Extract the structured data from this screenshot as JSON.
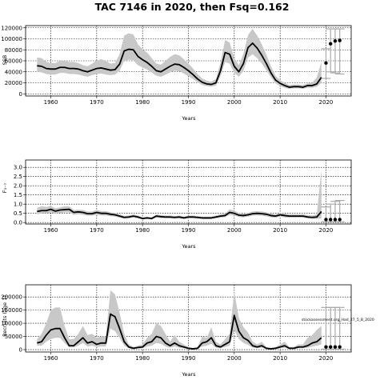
{
  "title": "TAC 7146 in 2020, then Fsq=0.162",
  "colors": {
    "band": "#c8c8c8",
    "line": "#000000",
    "bar": "#aaaaaa",
    "grid": "#000000"
  },
  "chart_data": [
    {
      "type": "line",
      "panel": "ssb",
      "xlabel": "Years",
      "ylabel": "SSB",
      "xlim": [
        1954.5,
        2025.5
      ],
      "ylim": [
        -4000,
        124000
      ],
      "xticks": [
        1960,
        1970,
        1980,
        1990,
        2000,
        2010,
        2020
      ],
      "xtick_labels": [
        "1960",
        "1970",
        "1980",
        "1990",
        "2000",
        "2010",
        "2020"
      ],
      "yticks": [
        0,
        20000,
        40000,
        60000,
        80000,
        100000,
        120000
      ],
      "ytick_labels": [
        "0",
        "20000",
        "40000",
        "60000",
        "80000",
        "100000",
        "120000"
      ],
      "grid": true,
      "years": [
        1957,
        1958,
        1959,
        1960,
        1961,
        1962,
        1963,
        1964,
        1965,
        1966,
        1967,
        1968,
        1969,
        1970,
        1971,
        1972,
        1973,
        1974,
        1975,
        1976,
        1977,
        1978,
        1979,
        1980,
        1981,
        1982,
        1983,
        1984,
        1985,
        1986,
        1987,
        1988,
        1989,
        1990,
        1991,
        1992,
        1993,
        1994,
        1995,
        1996,
        1997,
        1998,
        1999,
        2000,
        2001,
        2002,
        2003,
        2004,
        2005,
        2006,
        2007,
        2008,
        2009,
        2010,
        2011,
        2012,
        2013,
        2014,
        2015,
        2016,
        2017,
        2018,
        2019
      ],
      "series": [
        {
          "role": "median",
          "values": [
            51000,
            50000,
            46000,
            45000,
            45000,
            48000,
            48000,
            46000,
            46000,
            45000,
            42000,
            40000,
            43000,
            46000,
            47000,
            45000,
            43000,
            44000,
            54000,
            78000,
            81000,
            80000,
            68000,
            62000,
            57000,
            50000,
            42000,
            40000,
            45000,
            50000,
            54000,
            53000,
            48000,
            42000,
            35000,
            27000,
            21000,
            18000,
            17000,
            20000,
            42000,
            75000,
            72000,
            50000,
            40000,
            55000,
            84000,
            92000,
            83000,
            70000,
            55000,
            38000,
            25000,
            19000,
            15000,
            12000,
            13000,
            13000,
            12000,
            15000,
            15000,
            18000,
            30000
          ]
        },
        {
          "role": "upper",
          "values": [
            66000,
            65000,
            58000,
            56000,
            56000,
            60000,
            60000,
            58000,
            58000,
            56000,
            52000,
            50000,
            55000,
            61000,
            63000,
            60000,
            55000,
            56000,
            72000,
            106000,
            110000,
            108000,
            90000,
            81000,
            75000,
            65000,
            55000,
            53000,
            60000,
            67000,
            72000,
            70000,
            63000,
            55000,
            46000,
            36000,
            28000,
            24000,
            22000,
            27000,
            57000,
            98000,
            93000,
            65000,
            52000,
            73000,
            107000,
            118000,
            106000,
            90000,
            71000,
            50000,
            33000,
            25000,
            20000,
            16000,
            17000,
            17000,
            16000,
            19000,
            20000,
            30000,
            58000
          ]
        },
        {
          "role": "lower",
          "values": [
            40000,
            39000,
            36000,
            35000,
            35000,
            38000,
            38000,
            36000,
            36000,
            35000,
            33000,
            31000,
            34000,
            36000,
            37000,
            35000,
            34000,
            35000,
            42000,
            60000,
            62000,
            61000,
            52000,
            48000,
            44000,
            39000,
            33000,
            31000,
            35000,
            39000,
            42000,
            41000,
            37000,
            32000,
            27000,
            21000,
            16000,
            14000,
            13000,
            15000,
            32000,
            58000,
            55000,
            38000,
            31000,
            42000,
            66000,
            72000,
            65000,
            55000,
            43000,
            30000,
            19000,
            14000,
            11000,
            9000,
            10000,
            10000,
            9000,
            11000,
            11000,
            13000,
            20000
          ]
        }
      ],
      "projection": {
        "years": [
          2020,
          2021,
          2022,
          2023
        ],
        "points": [
          56000,
          91000,
          96000,
          97000
        ],
        "bar_low": [
          28000,
          40000,
          38000,
          36000
        ],
        "bar_high": [
          82000,
          118000,
          118000,
          118000
        ]
      }
    },
    {
      "type": "line",
      "panel": "fbar",
      "xlabel": "Years",
      "ylabel": "F₃₋₇",
      "xlim": [
        1954.5,
        2025.5
      ],
      "ylim": [
        -0.08,
        3.4
      ],
      "xticks": [
        1960,
        1970,
        1980,
        1990,
        2000,
        2010,
        2020
      ],
      "xtick_labels": [
        "1960",
        "1970",
        "1980",
        "1990",
        "2000",
        "2010",
        "2020"
      ],
      "yticks": [
        0.0,
        0.5,
        1.0,
        1.5,
        2.0,
        2.5,
        3.0
      ],
      "ytick_labels": [
        "0.0",
        "0.5",
        "1.0",
        "1.5",
        "2.0",
        "2.5",
        "3.0"
      ],
      "grid": true,
      "years": [
        1957,
        1958,
        1959,
        1960,
        1961,
        1962,
        1963,
        1964,
        1965,
        1966,
        1967,
        1968,
        1969,
        1970,
        1971,
        1972,
        1973,
        1974,
        1975,
        1976,
        1977,
        1978,
        1979,
        1980,
        1981,
        1982,
        1983,
        1984,
        1985,
        1986,
        1987,
        1988,
        1989,
        1990,
        1991,
        1992,
        1993,
        1994,
        1995,
        1996,
        1997,
        1998,
        1999,
        2000,
        2001,
        2002,
        2003,
        2004,
        2005,
        2006,
        2007,
        2008,
        2009,
        2010,
        2011,
        2012,
        2013,
        2014,
        2015,
        2016,
        2017,
        2018,
        2019
      ],
      "series": [
        {
          "role": "median",
          "values": [
            0.6,
            0.65,
            0.65,
            0.72,
            0.62,
            0.68,
            0.7,
            0.72,
            0.55,
            0.58,
            0.55,
            0.48,
            0.48,
            0.55,
            0.5,
            0.5,
            0.45,
            0.42,
            0.35,
            0.28,
            0.3,
            0.35,
            0.3,
            0.22,
            0.25,
            0.22,
            0.35,
            0.32,
            0.3,
            0.3,
            0.28,
            0.3,
            0.25,
            0.3,
            0.3,
            0.28,
            0.25,
            0.25,
            0.25,
            0.3,
            0.35,
            0.38,
            0.55,
            0.5,
            0.4,
            0.38,
            0.42,
            0.48,
            0.5,
            0.48,
            0.45,
            0.38,
            0.35,
            0.42,
            0.38,
            0.35,
            0.35,
            0.35,
            0.35,
            0.3,
            0.28,
            0.3,
            0.6
          ]
        },
        {
          "role": "upper",
          "values": [
            0.8,
            0.88,
            0.85,
            0.9,
            0.78,
            0.82,
            0.88,
            0.88,
            0.68,
            0.7,
            0.68,
            0.6,
            0.6,
            0.68,
            0.62,
            0.62,
            0.56,
            0.52,
            0.44,
            0.36,
            0.38,
            0.44,
            0.38,
            0.28,
            0.32,
            0.28,
            0.44,
            0.4,
            0.38,
            0.38,
            0.35,
            0.38,
            0.32,
            0.38,
            0.38,
            0.35,
            0.32,
            0.32,
            0.32,
            0.38,
            0.45,
            0.48,
            0.72,
            0.65,
            0.52,
            0.48,
            0.53,
            0.6,
            0.62,
            0.6,
            0.56,
            0.48,
            0.44,
            0.52,
            0.48,
            0.45,
            0.45,
            0.45,
            0.45,
            0.4,
            0.38,
            0.45,
            2.9
          ]
        },
        {
          "role": "lower",
          "values": [
            0.45,
            0.5,
            0.5,
            0.55,
            0.48,
            0.52,
            0.55,
            0.55,
            0.42,
            0.45,
            0.42,
            0.37,
            0.37,
            0.42,
            0.38,
            0.38,
            0.34,
            0.32,
            0.26,
            0.21,
            0.22,
            0.27,
            0.22,
            0.16,
            0.19,
            0.16,
            0.27,
            0.24,
            0.22,
            0.22,
            0.21,
            0.22,
            0.19,
            0.22,
            0.22,
            0.21,
            0.19,
            0.19,
            0.19,
            0.22,
            0.27,
            0.29,
            0.42,
            0.38,
            0.3,
            0.28,
            0.32,
            0.37,
            0.38,
            0.37,
            0.34,
            0.28,
            0.26,
            0.32,
            0.28,
            0.26,
            0.26,
            0.26,
            0.26,
            0.22,
            0.2,
            0.2,
            0.22
          ]
        }
      ],
      "projection": {
        "years": [
          2020,
          2021,
          2022,
          2023
        ],
        "points": [
          0.16,
          0.16,
          0.16,
          0.16
        ],
        "bar_low": [
          0.04,
          0.04,
          0.04,
          0.04
        ],
        "bar_high": [
          0.85,
          1.0,
          1.15,
          1.2
        ]
      }
    },
    {
      "type": "line",
      "panel": "recruitment",
      "xlabel": "Years",
      "ylabel": "Recruits (age 1)",
      "annotation": "stockassessment.org_Had_27_5_B_2020",
      "xlim": [
        1954.5,
        2025.5
      ],
      "ylim": [
        -9000,
        246000
      ],
      "xticks": [
        1960,
        1970,
        1980,
        1990,
        2000,
        2010,
        2020
      ],
      "xtick_labels": [
        "1960",
        "1970",
        "1980",
        "1990",
        "2000",
        "2010",
        "2020"
      ],
      "yticks": [
        0,
        50000,
        100000,
        150000,
        200000
      ],
      "ytick_labels": [
        "0",
        "50000",
        "100000",
        "150000",
        "200000"
      ],
      "grid": true,
      "years": [
        1957,
        1958,
        1959,
        1960,
        1961,
        1962,
        1963,
        1964,
        1965,
        1966,
        1967,
        1968,
        1969,
        1970,
        1971,
        1972,
        1973,
        1974,
        1975,
        1976,
        1977,
        1978,
        1979,
        1980,
        1981,
        1982,
        1983,
        1984,
        1985,
        1986,
        1987,
        1988,
        1989,
        1990,
        1991,
        1992,
        1993,
        1994,
        1995,
        1996,
        1997,
        1998,
        1999,
        2000,
        2001,
        2002,
        2003,
        2004,
        2005,
        2006,
        2007,
        2008,
        2009,
        2010,
        2011,
        2012,
        2013,
        2014,
        2015,
        2016,
        2017,
        2018,
        2019
      ],
      "series": [
        {
          "role": "median",
          "values": [
            25000,
            30000,
            55000,
            75000,
            80000,
            80000,
            45000,
            15000,
            15000,
            30000,
            45000,
            25000,
            30000,
            20000,
            25000,
            25000,
            135000,
            125000,
            80000,
            30000,
            10000,
            5000,
            8000,
            10000,
            25000,
            30000,
            50000,
            45000,
            25000,
            15000,
            25000,
            15000,
            10000,
            5000,
            3000,
            5000,
            25000,
            30000,
            45000,
            15000,
            10000,
            20000,
            30000,
            130000,
            70000,
            45000,
            35000,
            15000,
            10000,
            15000,
            5000,
            3000,
            5000,
            10000,
            15000,
            5000,
            5000,
            10000,
            10000,
            15000,
            25000,
            30000,
            45000
          ]
        },
        {
          "role": "upper",
          "values": [
            40000,
            60000,
            100000,
            150000,
            160000,
            160000,
            90000,
            40000,
            40000,
            60000,
            90000,
            55000,
            60000,
            45000,
            50000,
            50000,
            225000,
            210000,
            140000,
            60000,
            20000,
            10000,
            15000,
            20000,
            45000,
            60000,
            100000,
            90000,
            60000,
            30000,
            55000,
            30000,
            20000,
            10000,
            6000,
            10000,
            50000,
            45000,
            85000,
            30000,
            20000,
            40000,
            60000,
            220000,
            120000,
            85000,
            65000,
            30000,
            20000,
            30000,
            10000,
            6000,
            10000,
            20000,
            30000,
            10000,
            10000,
            20000,
            20000,
            45000,
            55000,
            75000,
            90000
          ]
        },
        {
          "role": "lower",
          "values": [
            15000,
            15000,
            30000,
            40000,
            45000,
            45000,
            25000,
            8000,
            8000,
            15000,
            25000,
            12000,
            15000,
            10000,
            12000,
            12000,
            80000,
            70000,
            45000,
            15000,
            5000,
            2000,
            4000,
            5000,
            12000,
            15000,
            25000,
            22000,
            12000,
            7000,
            12000,
            7000,
            5000,
            2000,
            1000,
            2000,
            12000,
            15000,
            22000,
            7000,
            5000,
            10000,
            15000,
            75000,
            40000,
            25000,
            18000,
            7000,
            5000,
            7000,
            2000,
            1000,
            2000,
            5000,
            7000,
            2000,
            2000,
            5000,
            5000,
            7000,
            12000,
            15000,
            20000
          ]
        }
      ],
      "projection": {
        "years": [
          2020,
          2021,
          2022,
          2023
        ],
        "points": [
          10000,
          10000,
          10000,
          10000
        ],
        "bar_low": [
          2000,
          2000,
          2000,
          2000
        ],
        "bar_high": [
          160000,
          160000,
          160000,
          160000
        ]
      }
    }
  ]
}
